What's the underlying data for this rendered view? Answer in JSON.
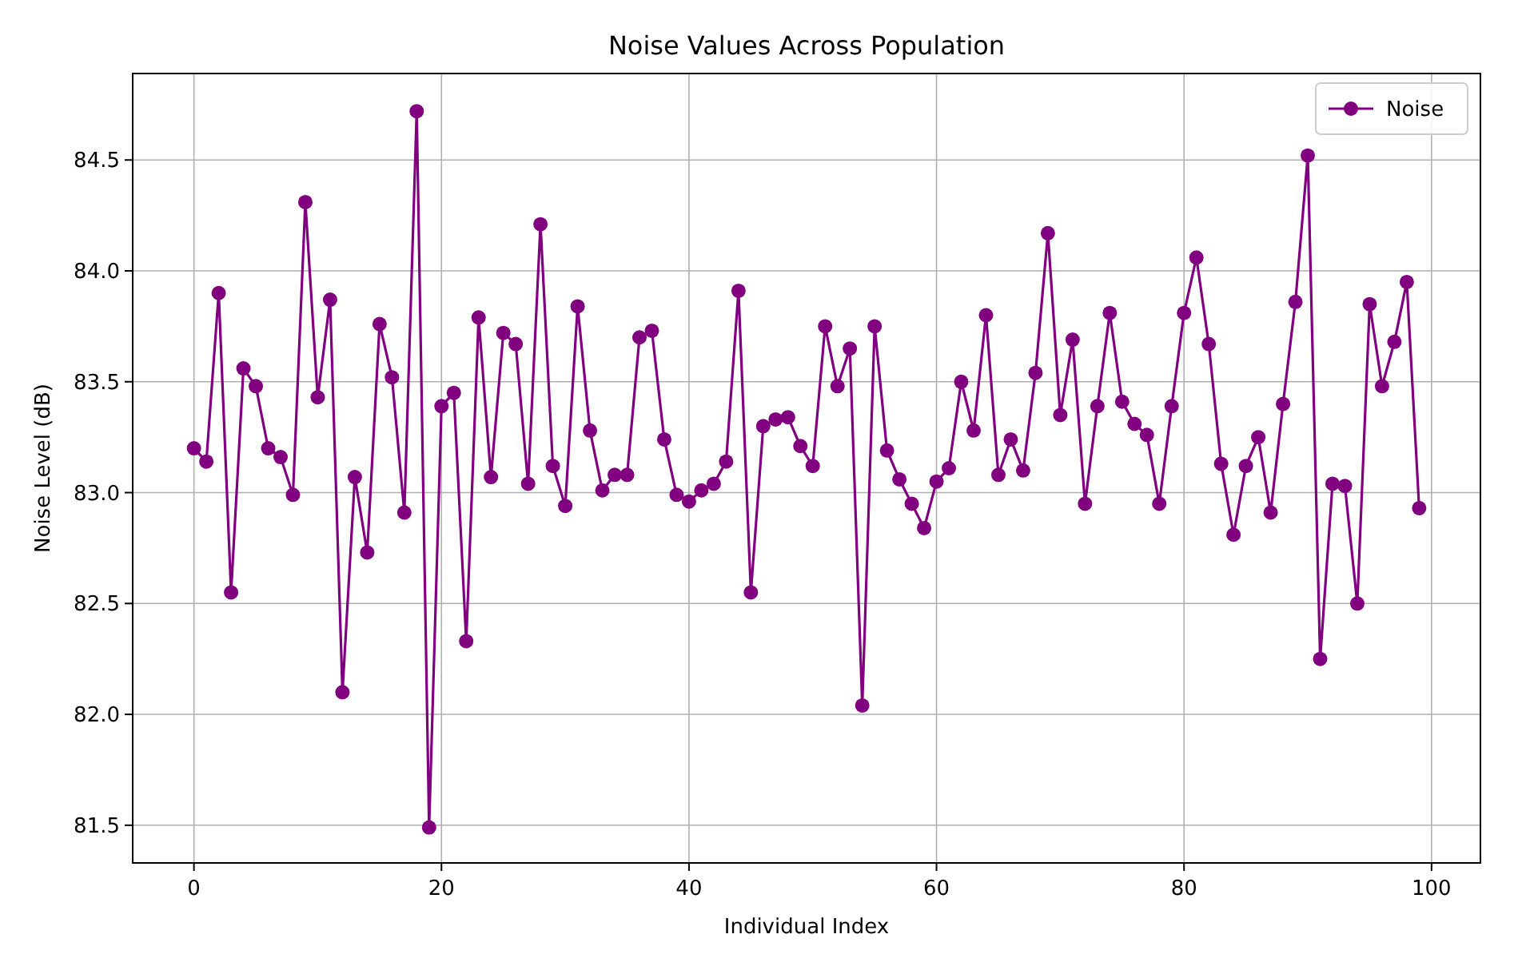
{
  "chart_data": {
    "type": "line",
    "title": "Noise Values Across Population",
    "xlabel": "Individual Index",
    "ylabel": "Noise Level (dB)",
    "x": [
      0,
      1,
      2,
      3,
      4,
      5,
      6,
      7,
      8,
      9,
      10,
      11,
      12,
      13,
      14,
      15,
      16,
      17,
      18,
      19,
      20,
      21,
      22,
      23,
      24,
      25,
      26,
      27,
      28,
      29,
      30,
      31,
      32,
      33,
      34,
      35,
      36,
      37,
      38,
      39,
      40,
      41,
      42,
      43,
      44,
      45,
      46,
      47,
      48,
      49,
      50,
      51,
      52,
      53,
      54,
      55,
      56,
      57,
      58,
      59,
      60,
      61,
      62,
      63,
      64,
      65,
      66,
      67,
      68,
      69,
      70,
      71,
      72,
      73,
      74,
      75,
      76,
      77,
      78,
      79,
      80,
      81,
      82,
      83,
      84,
      85,
      86,
      87,
      88,
      89,
      90,
      91,
      92,
      93,
      94,
      95,
      96,
      97,
      98,
      99
    ],
    "series": [
      {
        "name": "Noise",
        "color": "#800080",
        "values": [
          83.2,
          83.14,
          83.9,
          82.55,
          83.56,
          83.48,
          83.2,
          83.16,
          82.99,
          84.31,
          83.43,
          83.87,
          82.1,
          83.07,
          82.73,
          83.76,
          83.52,
          82.91,
          84.72,
          81.49,
          83.39,
          83.45,
          82.33,
          83.79,
          83.07,
          83.72,
          83.67,
          83.04,
          84.21,
          83.12,
          82.94,
          83.84,
          83.28,
          83.01,
          83.08,
          83.08,
          83.7,
          83.73,
          83.24,
          82.99,
          82.96,
          83.01,
          83.04,
          83.14,
          83.91,
          82.55,
          83.3,
          83.33,
          83.34,
          83.21,
          83.12,
          83.75,
          83.48,
          83.65,
          82.04,
          83.75,
          83.19,
          83.06,
          82.95,
          82.84,
          83.05,
          83.11,
          83.5,
          83.28,
          83.8,
          83.08,
          83.24,
          83.1,
          83.54,
          84.17,
          83.35,
          83.69,
          82.95,
          83.39,
          83.81,
          83.41,
          83.31,
          83.26,
          82.95,
          83.39,
          83.81,
          84.06,
          83.67,
          83.13,
          82.81,
          83.12,
          83.25,
          82.91,
          83.4,
          83.86,
          84.52,
          82.25,
          83.04,
          83.03,
          82.5,
          83.85,
          83.48,
          83.68,
          83.95,
          82.93
        ]
      }
    ],
    "xlim": [
      -4.95,
      103.95
    ],
    "ylim": [
      81.33,
      84.89
    ],
    "xticks": [
      0,
      20,
      40,
      60,
      80,
      100
    ],
    "yticks": [
      {
        "value": 81.5,
        "label": "81.5"
      },
      {
        "value": 82,
        "label": "82.0"
      },
      {
        "value": 82.5,
        "label": "82.5"
      },
      {
        "value": 83,
        "label": "83.0"
      },
      {
        "value": 83.5,
        "label": "83.5"
      },
      {
        "value": 84,
        "label": "84.0"
      },
      {
        "value": 84.5,
        "label": "84.5"
      }
    ],
    "grid": true,
    "legend": "top right",
    "marker": "circle",
    "line_style": "solid"
  }
}
